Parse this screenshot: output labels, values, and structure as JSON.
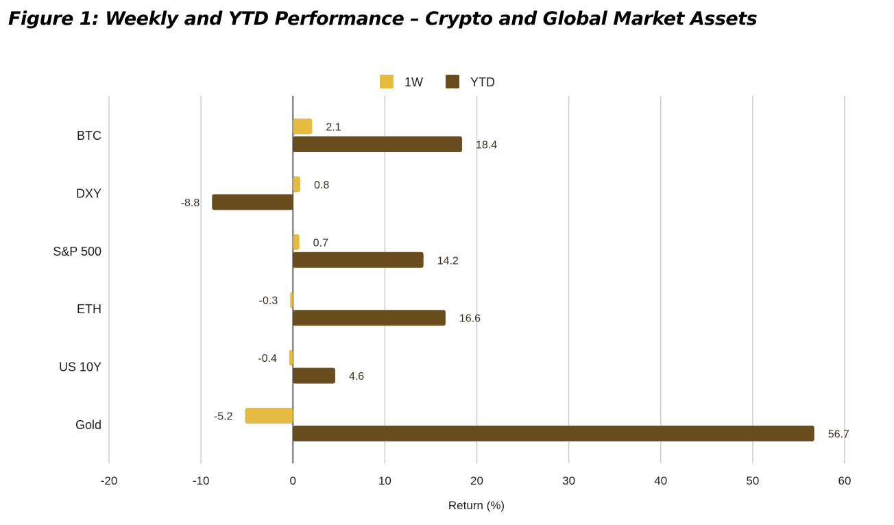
{
  "chart_data": {
    "type": "bar",
    "orientation": "horizontal",
    "title": "Figure 1: Weekly and YTD Performance – Crypto and Global Market Assets",
    "xlabel": "Return (%)",
    "ylabel": "",
    "categories": [
      "BTC",
      "DXY",
      "S&P 500",
      "ETH",
      "US 10Y",
      "Gold"
    ],
    "series": [
      {
        "name": "1W",
        "color": "#E6BB41",
        "values": [
          2.1,
          0.8,
          0.7,
          -0.3,
          -0.4,
          -5.2
        ]
      },
      {
        "name": "YTD",
        "color": "#694D1E",
        "values": [
          18.4,
          -8.8,
          14.2,
          16.6,
          4.6,
          56.7
        ]
      }
    ],
    "xlim": [
      -20,
      60
    ],
    "xticks": [
      "-20",
      "-10",
      "0",
      "10",
      "20",
      "30",
      "40",
      "50",
      "60"
    ],
    "grid": true,
    "legend": "top"
  }
}
